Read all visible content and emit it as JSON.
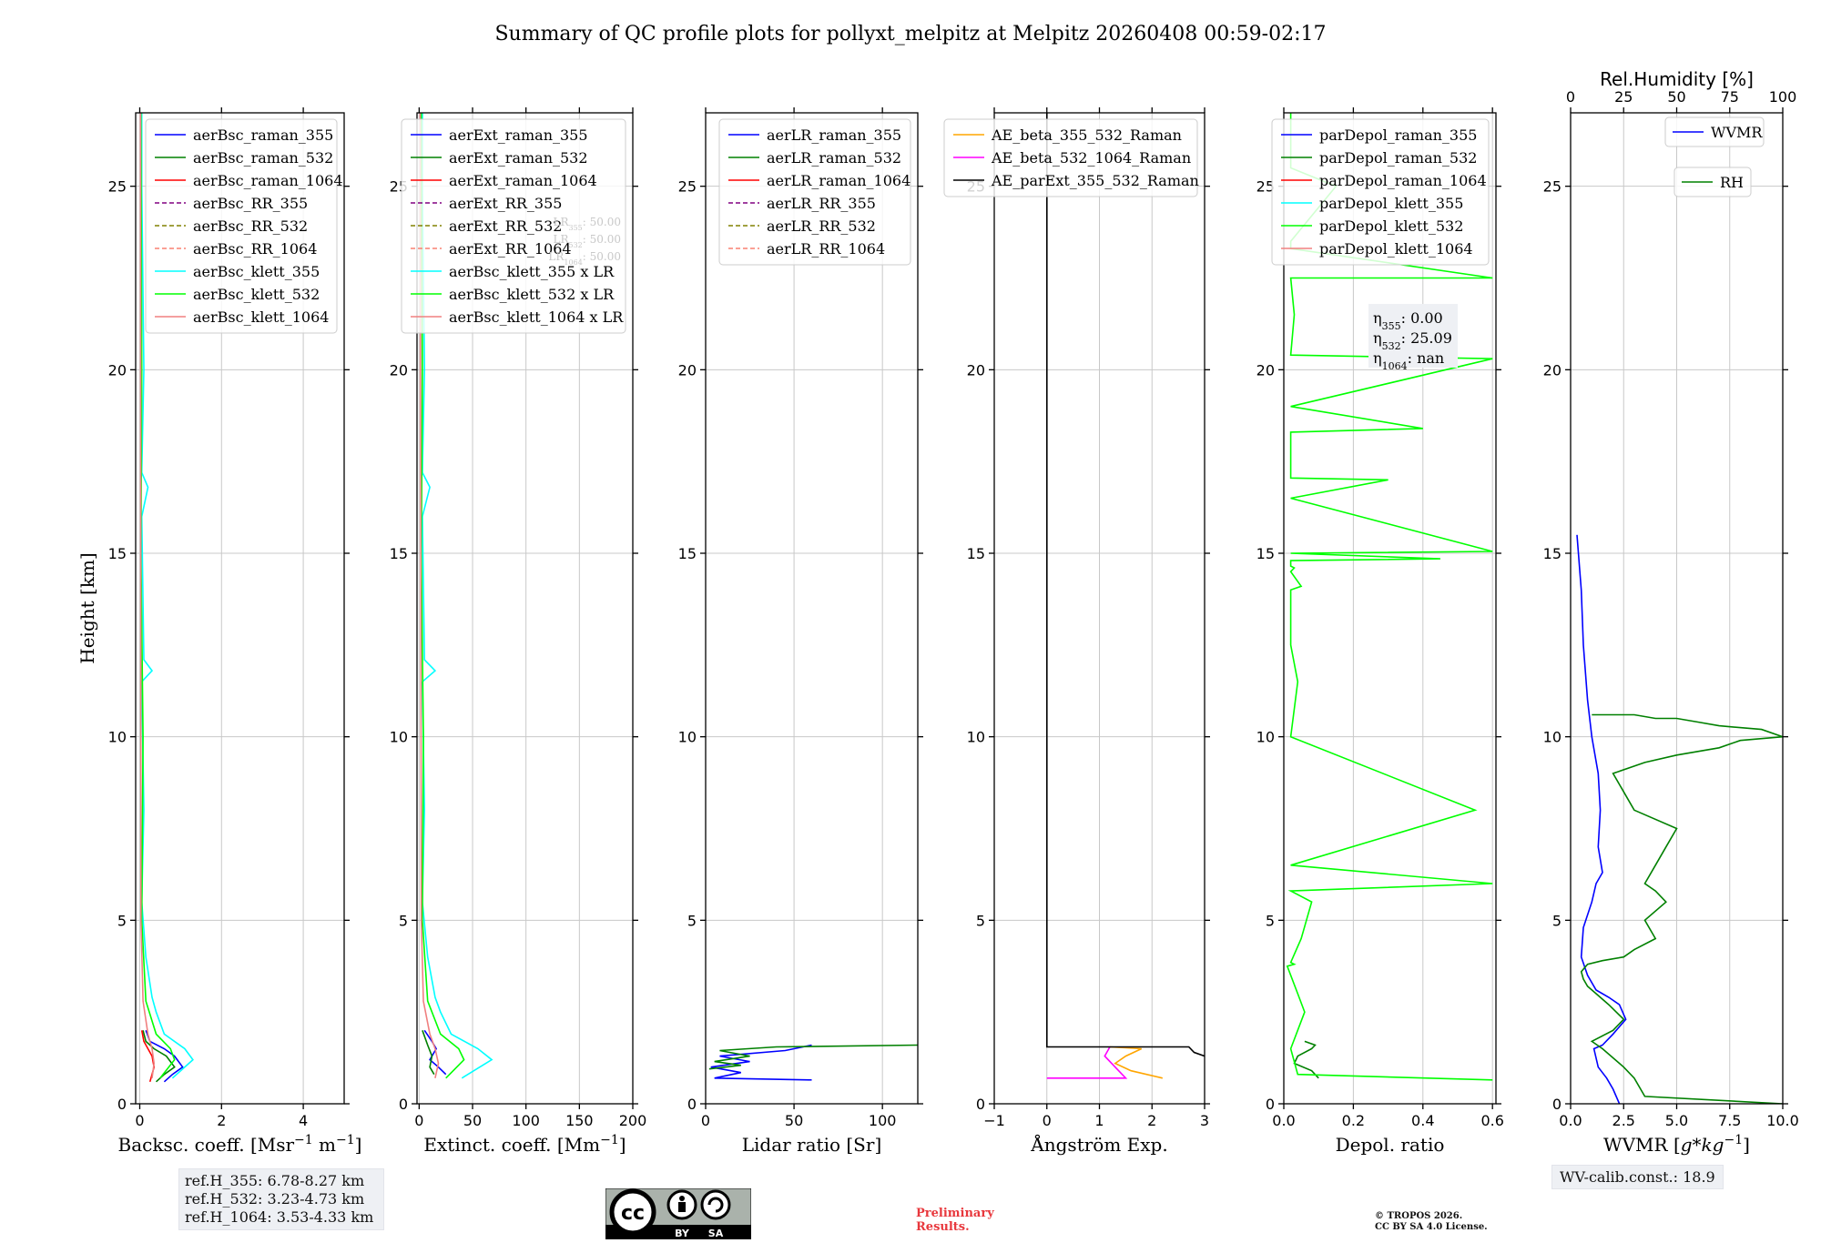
{
  "title": "Summary of QC profile plots for pollyxt_melpitz at Melpitz 20260408 00:59-02:17",
  "reference_heights": [
    "ref.H_355: 6.78-8.27 km",
    "ref.H_532: 3.23-4.73 km",
    "ref.H_1064: 3.53-4.33 km"
  ],
  "wv_calib": "WV-calib.const.: 18.9",
  "preliminary": [
    "Preliminary",
    "Results."
  ],
  "copyright": [
    "© TROPOS 2026.",
    "CC BY SA 4.0 License."
  ],
  "cc_badge": [
    "BY",
    "SA"
  ],
  "colors": {
    "blue": "#0000ff",
    "green": "#008000",
    "red": "#ff0000",
    "purple": "#800080",
    "olive": "#808000",
    "salmon": "#fa8072",
    "cyan": "#00ffff",
    "lime": "#00ff00",
    "lightred": "#f08080",
    "orange": "#ffa500",
    "magenta": "#ff00ff",
    "black": "#000000"
  },
  "chart_data": [
    {
      "type": "line",
      "name": "backscatter",
      "ylabel": "Height [km]",
      "ylim": [
        0,
        27
      ],
      "yticks": [
        0,
        5,
        10,
        15,
        20,
        25
      ],
      "xlabel": "Backsc. coeff. [Msr$^{-1}$ m$^{-1}$]",
      "xlim": [
        -0.1,
        5
      ],
      "xticks": [
        0,
        2,
        4
      ],
      "xticklabels": [
        "0",
        "2",
        "4"
      ],
      "legend": "top-right",
      "series": [
        {
          "name": "aerBsc_raman_355",
          "color": "blue",
          "style": "solid",
          "x": [
            0.6,
            0.8,
            1.05,
            0.85,
            0.6,
            0.25,
            0.15
          ],
          "y": [
            0.6,
            0.8,
            1.0,
            1.3,
            1.5,
            1.7,
            2.0
          ]
        },
        {
          "name": "aerBsc_raman_532",
          "color": "green",
          "style": "solid",
          "x": [
            0.4,
            0.6,
            0.85,
            0.65,
            0.35,
            0.15,
            0.08
          ],
          "y": [
            0.6,
            0.8,
            1.0,
            1.3,
            1.5,
            1.7,
            2.0
          ]
        },
        {
          "name": "aerBsc_raman_1064",
          "color": "red",
          "style": "solid",
          "x": [
            0.25,
            0.3,
            0.35,
            0.3,
            0.2,
            0.1,
            0.05
          ],
          "y": [
            0.6,
            0.8,
            1.0,
            1.3,
            1.5,
            1.7,
            2.0
          ]
        },
        {
          "name": "aerBsc_RR_355",
          "color": "purple",
          "style": "dash",
          "x": [],
          "y": []
        },
        {
          "name": "aerBsc_RR_532",
          "color": "olive",
          "style": "dash",
          "x": [],
          "y": []
        },
        {
          "name": "aerBsc_RR_1064",
          "color": "salmon",
          "style": "dash",
          "x": [],
          "y": []
        },
        {
          "name": "aerBsc_klett_355",
          "color": "cyan",
          "style": "solid",
          "x": [
            0.8,
            1.3,
            1.1,
            0.6,
            0.4,
            0.3,
            0.15,
            0.05,
            0.1,
            0.05,
            0.3,
            0.1,
            0.05,
            0.2,
            0.05,
            0.1,
            0.05,
            0.05
          ],
          "y": [
            0.7,
            1.2,
            1.5,
            1.9,
            2.5,
            2.9,
            4.0,
            5.5,
            8.0,
            11.5,
            11.8,
            12.1,
            16.0,
            16.8,
            17.2,
            20.0,
            25.0,
            27.0
          ]
        },
        {
          "name": "aerBsc_klett_532",
          "color": "lime",
          "style": "solid",
          "x": [
            0.5,
            0.85,
            0.75,
            0.4,
            0.15,
            0.05,
            0.08,
            0.03,
            0.05,
            0.03
          ],
          "y": [
            0.7,
            1.2,
            1.5,
            1.9,
            2.8,
            5.0,
            10.0,
            15.0,
            20.0,
            27.0
          ]
        },
        {
          "name": "aerBsc_klett_1064",
          "color": "lightred",
          "style": "solid",
          "x": [
            0.3,
            0.35,
            0.3,
            0.2,
            0.08,
            0.03,
            0.02
          ],
          "y": [
            0.7,
            1.1,
            1.5,
            1.9,
            2.8,
            5.0,
            27.0
          ]
        }
      ]
    },
    {
      "type": "line",
      "name": "extinction",
      "xlabel": "Extinct. coeff. [Mm$^{-1}$]",
      "xlim": [
        -2,
        200
      ],
      "xticks": [
        0,
        50,
        100,
        150,
        200
      ],
      "xticklabels": [
        "0",
        "50",
        "100",
        "150",
        "200"
      ],
      "ylim": [
        0,
        27
      ],
      "yticks": [
        0,
        5,
        10,
        15,
        20,
        25
      ],
      "legend": "top-right",
      "annotations": [
        "LR$_{355}$: 50.00",
        "LR$_{532}$: 50.00",
        "LR$_{1064}$: 50.00"
      ],
      "series": [
        {
          "name": "aerExt_raman_355",
          "color": "blue",
          "style": "solid",
          "x": [
            25,
            18,
            10,
            16,
            12,
            5
          ],
          "y": [
            0.8,
            1.0,
            1.2,
            1.5,
            1.7,
            2.0
          ]
        },
        {
          "name": "aerExt_raman_532",
          "color": "green",
          "style": "solid",
          "x": [
            14,
            10,
            12,
            8,
            3
          ],
          "y": [
            0.8,
            1.0,
            1.3,
            1.6,
            2.0
          ]
        },
        {
          "name": "aerExt_raman_1064",
          "color": "red",
          "style": "solid",
          "x": [],
          "y": []
        },
        {
          "name": "aerExt_RR_355",
          "color": "purple",
          "style": "dash",
          "x": [],
          "y": []
        },
        {
          "name": "aerExt_RR_532",
          "color": "olive",
          "style": "dash",
          "x": [],
          "y": []
        },
        {
          "name": "aerExt_RR_1064",
          "color": "salmon",
          "style": "dash",
          "x": [],
          "y": []
        },
        {
          "name": "aerBsc_klett_355 x LR",
          "color": "cyan",
          "style": "solid",
          "x": [
            40,
            68,
            55,
            30,
            20,
            15,
            8,
            3,
            5,
            3,
            15,
            5,
            3,
            10,
            3,
            5,
            3,
            3
          ],
          "y": [
            0.7,
            1.2,
            1.5,
            1.9,
            2.5,
            2.9,
            4.0,
            5.5,
            8.0,
            11.5,
            11.8,
            12.1,
            16.0,
            16.8,
            17.2,
            20.0,
            25.0,
            27.0
          ]
        },
        {
          "name": "aerBsc_klett_532 x LR",
          "color": "lime",
          "style": "solid",
          "x": [
            25,
            42,
            37,
            20,
            8,
            3,
            4,
            2,
            3,
            2
          ],
          "y": [
            0.7,
            1.2,
            1.5,
            1.9,
            2.8,
            5.0,
            10.0,
            15.0,
            20.0,
            27.0
          ]
        },
        {
          "name": "aerBsc_klett_1064 x LR",
          "color": "lightred",
          "style": "solid",
          "x": [
            15,
            18,
            15,
            10,
            4,
            2,
            1
          ],
          "y": [
            0.7,
            1.1,
            1.5,
            1.9,
            2.8,
            5.0,
            27.0
          ]
        }
      ]
    },
    {
      "type": "line",
      "name": "lidar-ratio",
      "xlabel": "Lidar ratio [Sr]",
      "xlim": [
        0,
        120
      ],
      "xticks": [
        0,
        50,
        100
      ],
      "xticklabels": [
        "0",
        "50",
        "100"
      ],
      "ylim": [
        0,
        27
      ],
      "yticks": [
        0,
        5,
        10,
        15,
        20,
        25
      ],
      "legend": "top-right",
      "series": [
        {
          "name": "aerLR_raman_355",
          "color": "blue",
          "style": "solid",
          "x": [
            60,
            5,
            20,
            3,
            25,
            8,
            45,
            60
          ],
          "y": [
            0.65,
            0.7,
            0.85,
            1.0,
            1.15,
            1.3,
            1.45,
            1.6
          ]
        },
        {
          "name": "aerLR_raman_532",
          "color": "green",
          "style": "solid",
          "x": [
            2,
            20,
            5,
            25,
            8,
            40,
            120
          ],
          "y": [
            0.95,
            1.05,
            1.15,
            1.3,
            1.45,
            1.55,
            1.6
          ]
        },
        {
          "name": "aerLR_raman_1064",
          "color": "red",
          "style": "solid",
          "x": [],
          "y": []
        },
        {
          "name": "aerLR_RR_355",
          "color": "purple",
          "style": "dash",
          "x": [],
          "y": []
        },
        {
          "name": "aerLR_RR_532",
          "color": "olive",
          "style": "dash",
          "x": [],
          "y": []
        },
        {
          "name": "aerLR_RR_1064",
          "color": "salmon",
          "style": "dash",
          "x": [],
          "y": []
        }
      ]
    },
    {
      "type": "line",
      "name": "angstrom",
      "xlabel": "Ångström Exp.",
      "xlim": [
        -1,
        3
      ],
      "xticks": [
        -1,
        0,
        1,
        2,
        3
      ],
      "xticklabels": [
        "−1",
        "0",
        "1",
        "2",
        "3"
      ],
      "ylim": [
        0,
        27
      ],
      "yticks": [
        0,
        5,
        10,
        15,
        20,
        25
      ],
      "legend": "top-right",
      "series": [
        {
          "name": "AE_beta_355_532_Raman",
          "color": "orange",
          "style": "solid",
          "x": [
            2.2,
            1.6,
            1.3,
            1.5,
            1.8,
            1.2
          ],
          "y": [
            0.7,
            0.9,
            1.1,
            1.3,
            1.5,
            1.55
          ]
        },
        {
          "name": "AE_beta_532_1064_Raman",
          "color": "magenta",
          "style": "solid",
          "x": [
            0,
            1.5,
            1.3,
            1.1,
            1.2
          ],
          "y": [
            0.7,
            0.7,
            1.0,
            1.3,
            1.55
          ]
        },
        {
          "name": "AE_parExt_355_532_Raman",
          "color": "black",
          "style": "solid",
          "x": [
            0,
            0,
            0,
            2.7,
            2.8,
            3.0
          ],
          "y": [
            27,
            1.55,
            1.55,
            1.55,
            1.4,
            1.3
          ]
        }
      ]
    },
    {
      "type": "line",
      "name": "depolarization",
      "xlabel": "Depol. ratio",
      "xlim": [
        0,
        0.61
      ],
      "xticks": [
        0,
        0.2,
        0.4,
        0.6
      ],
      "xticklabels": [
        "0.0",
        "0.2",
        "0.4",
        "0.6"
      ],
      "ylim": [
        0,
        27
      ],
      "yticks": [
        0,
        5,
        10,
        15,
        20,
        25
      ],
      "legend": "top-right",
      "annotations": [
        "η$_{355}$: 0.00",
        "η$_{532}$: 25.09",
        "η$_{1064}$: nan"
      ],
      "series": [
        {
          "name": "parDepol_raman_355",
          "color": "blue",
          "style": "solid",
          "x": [],
          "y": []
        },
        {
          "name": "parDepol_raman_532",
          "color": "green",
          "style": "solid",
          "x": [
            0.1,
            0.08,
            0.03,
            0.04,
            0.08,
            0.09,
            0.06
          ],
          "y": [
            0.7,
            0.9,
            1.1,
            1.3,
            1.5,
            1.6,
            1.7
          ]
        },
        {
          "name": "parDepol_raman_1064",
          "color": "red",
          "style": "solid",
          "x": [],
          "y": []
        },
        {
          "name": "parDepol_klett_355",
          "color": "cyan",
          "style": "solid",
          "x": [],
          "y": []
        },
        {
          "name": "parDepol_klett_532",
          "color": "lime",
          "style": "solid",
          "x": [
            0.6,
            0.04,
            0.02,
            0.06,
            0.04,
            0.02,
            0.01,
            0.03,
            0.02,
            0.05,
            0.08,
            0.02,
            0.6,
            0.02,
            0.55,
            0.02,
            0.04,
            0.02,
            0.02,
            0.05,
            0.02,
            0.03,
            0.02,
            0.02,
            0.45,
            0.02,
            0.6,
            0.02,
            0.3,
            0.02,
            0.02,
            0.4,
            0.02,
            0.6,
            0.02,
            0.03,
            0.02,
            0.6,
            0.02,
            0.02,
            0.15,
            0.02,
            0.02
          ],
          "y": [
            0.65,
            0.8,
            1.5,
            2.5,
            3.0,
            3.5,
            3.75,
            3.8,
            3.85,
            4.5,
            5.5,
            5.8,
            6.0,
            6.5,
            8.0,
            10.0,
            11.5,
            12.5,
            14.0,
            14.1,
            14.5,
            14.6,
            14.65,
            14.8,
            14.85,
            15.0,
            15.05,
            16.5,
            17.0,
            17.05,
            18.3,
            18.4,
            19.0,
            20.3,
            20.4,
            21.5,
            22.5,
            22.5,
            23.3,
            23.5,
            25.0,
            25.5,
            27.0
          ]
        },
        {
          "name": "parDepol_klett_1064",
          "color": "lightred",
          "style": "solid",
          "x": [],
          "y": []
        }
      ]
    },
    {
      "type": "line",
      "name": "water-vapor",
      "xlabel": "WVMR [$g*kg^{-1}$]",
      "xlim": [
        0,
        10
      ],
      "xticks": [
        0,
        2.5,
        5,
        7.5,
        10
      ],
      "xticklabels": [
        "0.0",
        "2.5",
        "5.0",
        "7.5",
        "10.0"
      ],
      "x2label": "Rel.Humidity [%]",
      "x2lim": [
        0,
        100
      ],
      "x2ticks": [
        0,
        25,
        50,
        75,
        100
      ],
      "x2ticklabels": [
        "0",
        "25",
        "50",
        "75",
        "100"
      ],
      "ylim": [
        0,
        27
      ],
      "yticks": [
        0,
        5,
        10,
        15,
        20,
        25
      ],
      "legend": "top-right",
      "series": [
        {
          "name": "WVMR",
          "color": "blue",
          "style": "solid",
          "axis": "x",
          "x": [
            2.3,
            2.0,
            1.7,
            1.3,
            1.1,
            1.5,
            2.0,
            2.6,
            2.3,
            1.8,
            1.2,
            0.8,
            0.5,
            0.6,
            1.0,
            1.2,
            1.5,
            1.3,
            1.4,
            1.3,
            1.0,
            0.8,
            0.6,
            0.5,
            0.3
          ],
          "y": [
            0,
            0.4,
            0.7,
            1.0,
            1.5,
            1.6,
            1.9,
            2.3,
            2.7,
            2.9,
            3.1,
            3.5,
            4.0,
            4.8,
            5.5,
            6.0,
            6.3,
            7.0,
            8.0,
            9.0,
            10.0,
            11.0,
            12.5,
            14.0,
            15.5
          ]
        },
        {
          "name": "RH",
          "color": "green",
          "style": "solid",
          "axis": "x2",
          "x": [
            100,
            35,
            30,
            25,
            15,
            10,
            20,
            25,
            18,
            12,
            8,
            6,
            5,
            8,
            15,
            25,
            30,
            40,
            35,
            45,
            40,
            35,
            40,
            45,
            50,
            30,
            25,
            20,
            35,
            50,
            70,
            80,
            100,
            90,
            70,
            60,
            50,
            40,
            30,
            20,
            10
          ],
          "y": [
            0,
            0.2,
            0.7,
            1.0,
            1.5,
            1.7,
            2.0,
            2.3,
            2.7,
            3.0,
            3.2,
            3.4,
            3.6,
            3.8,
            3.9,
            4.0,
            4.2,
            4.5,
            5.0,
            5.5,
            5.8,
            6.0,
            6.5,
            7.0,
            7.5,
            8.0,
            8.5,
            9.0,
            9.3,
            9.5,
            9.7,
            9.9,
            10.0,
            10.2,
            10.3,
            10.4,
            10.5,
            10.5,
            10.6,
            10.6,
            10.6
          ]
        }
      ]
    }
  ]
}
